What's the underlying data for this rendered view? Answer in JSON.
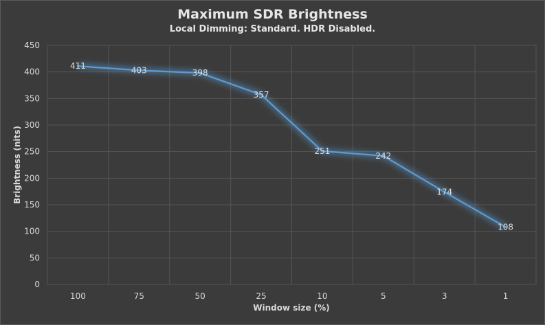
{
  "chart_data": {
    "type": "line",
    "title": "Maximum SDR Brightness",
    "subtitle": "Local Dimming:  Standard. HDR Disabled.",
    "xlabel": "Window size (%)",
    "ylabel": "Brightness  (nits)",
    "categories": [
      "100",
      "75",
      "50",
      "25",
      "10",
      "5",
      "3",
      "1"
    ],
    "series": [
      {
        "values": [
          411,
          403,
          398,
          357,
          251,
          242,
          174,
          108
        ],
        "color": "#5b9bd5"
      }
    ],
    "ylim": [
      0,
      450
    ],
    "yticks": [
      "0",
      "50",
      "100",
      "150",
      "200",
      "250",
      "300",
      "350",
      "400",
      "450"
    ],
    "grid": true,
    "legend": "none",
    "data_labels": true
  }
}
